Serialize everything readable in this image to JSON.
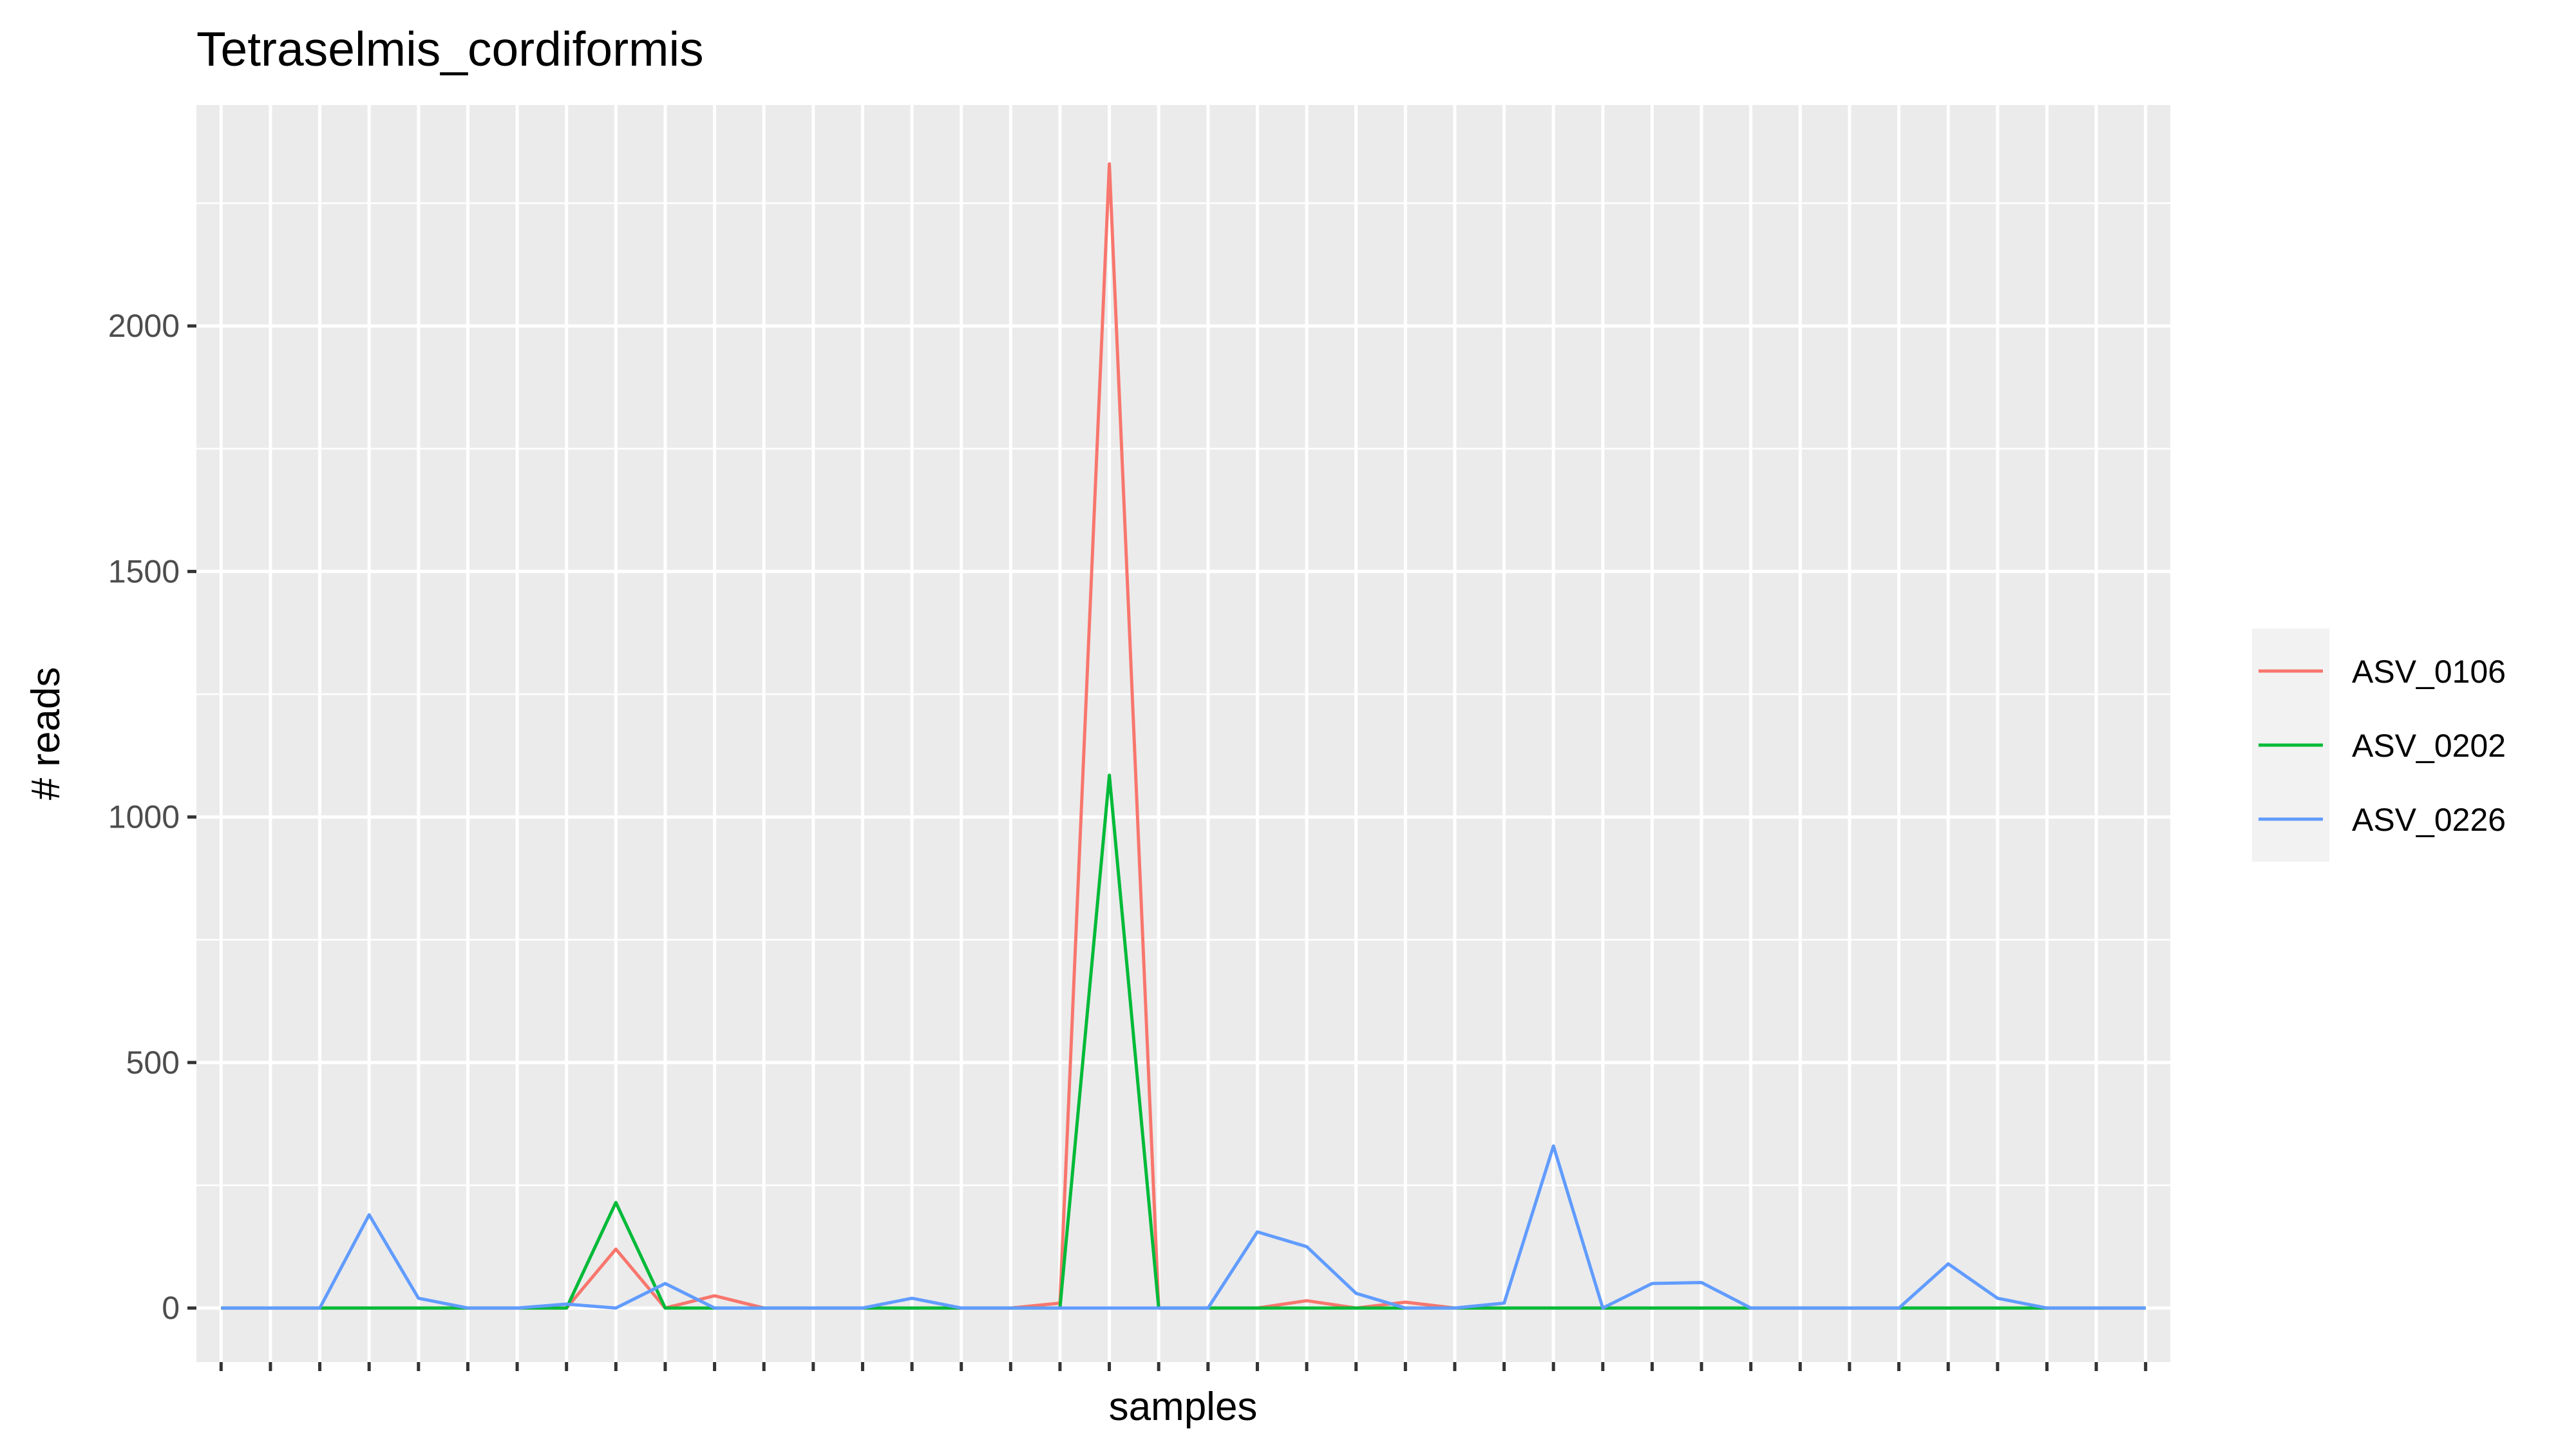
{
  "chart_data": {
    "type": "line",
    "title": "Tetraselmis_cordiformis",
    "xlabel": "samples",
    "ylabel": "# reads",
    "ylim": [
      -110,
      2450
    ],
    "yticks": [
      0,
      500,
      1000,
      1500,
      2000
    ],
    "x": [
      1,
      2,
      3,
      4,
      5,
      6,
      7,
      8,
      9,
      10,
      11,
      12,
      13,
      14,
      15,
      16,
      17,
      18,
      19,
      20,
      21,
      22,
      23,
      24,
      25,
      26,
      27,
      28,
      29,
      30,
      31,
      32,
      33,
      34,
      35,
      36,
      37,
      38,
      39,
      40
    ],
    "series": [
      {
        "name": "ASV_0106",
        "color": "#F8766D",
        "values": [
          0,
          0,
          0,
          0,
          0,
          0,
          0,
          0,
          120,
          0,
          25,
          0,
          0,
          0,
          0,
          0,
          0,
          10,
          2330,
          0,
          0,
          0,
          15,
          0,
          12,
          0,
          0,
          0,
          0,
          0,
          0,
          0,
          0,
          0,
          0,
          0,
          0,
          0,
          0,
          0
        ]
      },
      {
        "name": "ASV_0202",
        "color": "#00BA38",
        "values": [
          0,
          0,
          0,
          0,
          0,
          0,
          0,
          0,
          215,
          0,
          0,
          0,
          0,
          0,
          0,
          0,
          0,
          0,
          1085,
          0,
          0,
          0,
          0,
          0,
          0,
          0,
          0,
          0,
          0,
          0,
          0,
          0,
          0,
          0,
          0,
          0,
          0,
          0,
          0,
          0
        ]
      },
      {
        "name": "ASV_0226",
        "color": "#619CFF",
        "values": [
          0,
          0,
          0,
          190,
          20,
          0,
          0,
          8,
          0,
          50,
          0,
          0,
          0,
          0,
          20,
          0,
          0,
          0,
          0,
          0,
          0,
          155,
          125,
          30,
          0,
          0,
          10,
          330,
          0,
          50,
          52,
          0,
          0,
          0,
          0,
          90,
          20,
          0,
          0,
          0
        ]
      }
    ],
    "grid": true,
    "legend_position": "right"
  }
}
